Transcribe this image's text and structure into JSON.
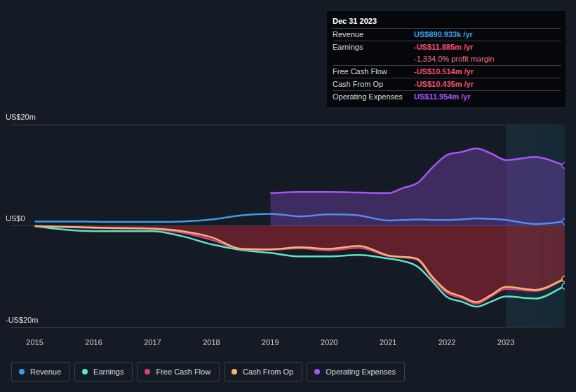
{
  "chart_data": {
    "type": "line",
    "x": [
      2015,
      2015.5,
      2016,
      2016.5,
      2017,
      2017.5,
      2018,
      2018.5,
      2019,
      2019.5,
      2020,
      2020.5,
      2021,
      2021.25,
      2021.5,
      2021.75,
      2022,
      2022.25,
      2022.5,
      2022.75,
      2023,
      2023.5,
      2024
    ],
    "series": [
      {
        "name": "Revenue",
        "color": "#3a9ee6",
        "values": [
          0.9,
          0.9,
          0.85,
          0.8,
          0.8,
          0.9,
          1.3,
          2.1,
          2.4,
          1.9,
          2.3,
          2.1,
          1.1,
          1.2,
          1.3,
          1.2,
          1.2,
          1.3,
          1.5,
          1.4,
          1.2,
          0.4,
          0.89
        ]
      },
      {
        "name": "Earnings",
        "color": "#5fe3c8",
        "values": [
          0,
          -0.7,
          -1.0,
          -1.0,
          -1.0,
          -2.0,
          -3.6,
          -4.7,
          -5.3,
          -6.0,
          -6.0,
          -5.7,
          -6.4,
          -6.9,
          -8.0,
          -10.9,
          -14.0,
          -14.9,
          -15.9,
          -14.9,
          -13.9,
          -14.3,
          -11.885
        ]
      },
      {
        "name": "Free Cash Flow",
        "color": "#d6417c",
        "values": [
          0,
          -0.2,
          -0.4,
          -0.5,
          -0.6,
          -1.3,
          -2.7,
          -4.5,
          -4.7,
          -4.4,
          -4.8,
          -4.3,
          -5.9,
          -6.2,
          -6.7,
          -10.3,
          -13.2,
          -14.2,
          -15.3,
          -13.9,
          -12.4,
          -12.8,
          -10.514
        ]
      },
      {
        "name": "Cash From Op",
        "color": "#f2b574",
        "values": [
          0,
          -0.15,
          -0.3,
          -0.4,
          -0.5,
          -1.0,
          -2.2,
          -4.5,
          -4.6,
          -4.2,
          -4.5,
          -3.9,
          -5.8,
          -6.1,
          -6.5,
          -10.0,
          -12.8,
          -13.9,
          -15.0,
          -13.6,
          -12.0,
          -12.6,
          -10.435
        ]
      },
      {
        "name": "Operating Expenses",
        "color": "#a855f7",
        "values": [
          null,
          null,
          null,
          null,
          null,
          null,
          null,
          null,
          6.5,
          6.7,
          6.7,
          6.6,
          6.5,
          7.5,
          8.5,
          11.5,
          14.0,
          14.6,
          15.3,
          14.3,
          13.0,
          13.6,
          11.954
        ]
      }
    ],
    "xlim": [
      2014.6,
      2024
    ],
    "xticks": [
      2015,
      2016,
      2017,
      2018,
      2019,
      2020,
      2021,
      2022,
      2023
    ],
    "ylim": [
      -20,
      20
    ],
    "yticks": [
      {
        "value": -20,
        "label": "-US$20m"
      },
      {
        "value": 0,
        "label": "US$0"
      },
      {
        "value": 20,
        "label": "US$20m"
      }
    ],
    "grid": true,
    "legend": "bottom",
    "annotations": {
      "title": "Dec 31 2023",
      "rows": [
        {
          "label": "Revenue",
          "value": "US$890.933k /yr"
        },
        {
          "label": "Earnings",
          "value": "-US$11.885m /yr"
        },
        {
          "value": "-1,334.0% profit margin"
        },
        {
          "label": "Free Cash Flow",
          "value": "-US$10.514m /yr"
        },
        {
          "label": "Cash From Op",
          "value": "-US$10.435m /yr"
        },
        {
          "label": "Operating Expenses",
          "value": "US$11.954m /yr"
        }
      ]
    }
  }
}
